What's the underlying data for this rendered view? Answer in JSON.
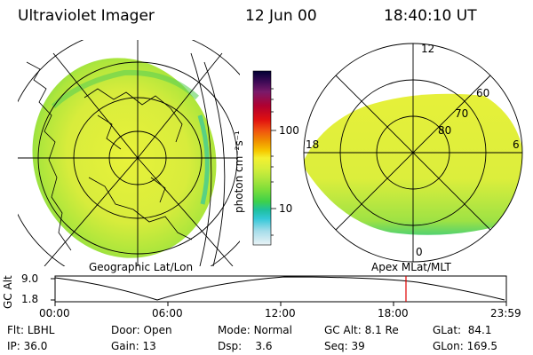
{
  "header": {
    "title": "Ultraviolet Imager",
    "date": "12 Jun 00",
    "time": "18:40:10 UT"
  },
  "colorbar": {
    "unit_label": "photon cm⁻²s⁻¹",
    "tick_100": "100",
    "tick_10": "10",
    "stops": [
      "#000033",
      "#3b0a55",
      "#7a1a6a",
      "#b00030",
      "#e01010",
      "#f05010",
      "#f08c00",
      "#f6c800",
      "#f4f030",
      "#d6ee3a",
      "#aee63c",
      "#7ede3a",
      "#3ed14a",
      "#1ec0a0",
      "#34c8d8",
      "#a6ddea",
      "#eaf3f6"
    ]
  },
  "left_panel": {
    "label": "Geographic Lat/Lon"
  },
  "right_panel": {
    "label": "Apex MLat/MLT",
    "mlt_12": "12",
    "mlt_18": "18",
    "mlt_6": "6",
    "mlt_0": "0",
    "lat_60": "60",
    "lat_70": "70",
    "lat_80": "80"
  },
  "altitude_plot": {
    "ylabel": "GC Alt",
    "ytick_top": "9.0",
    "ytick_bottom": "1.8",
    "xticks": [
      "00:00",
      "06:00",
      "12:00",
      "18:00",
      "23:59"
    ],
    "marker_color": "#e00000",
    "marker_time": "18:40:10"
  },
  "info": {
    "flt_label": "Flt:",
    "flt_value": "LBHL",
    "ip_label": "IP:",
    "ip_value": "36.0",
    "door_label": "Door:",
    "door_value": "Open",
    "gain_label": "Gain:",
    "gain_value": "13",
    "mode_label": "Mode:",
    "mode_value": "Normal",
    "dsp_label": "Dsp:",
    "dsp_value": "3.6",
    "gcalt_label": "GC Alt:",
    "gcalt_value": "8.1 Re",
    "seq_label": "Seq:",
    "seq_value": "39",
    "glat_label": "GLat:",
    "glat_value": "84.1",
    "glon_label": "GLon:",
    "glon_value": "169.5"
  }
}
